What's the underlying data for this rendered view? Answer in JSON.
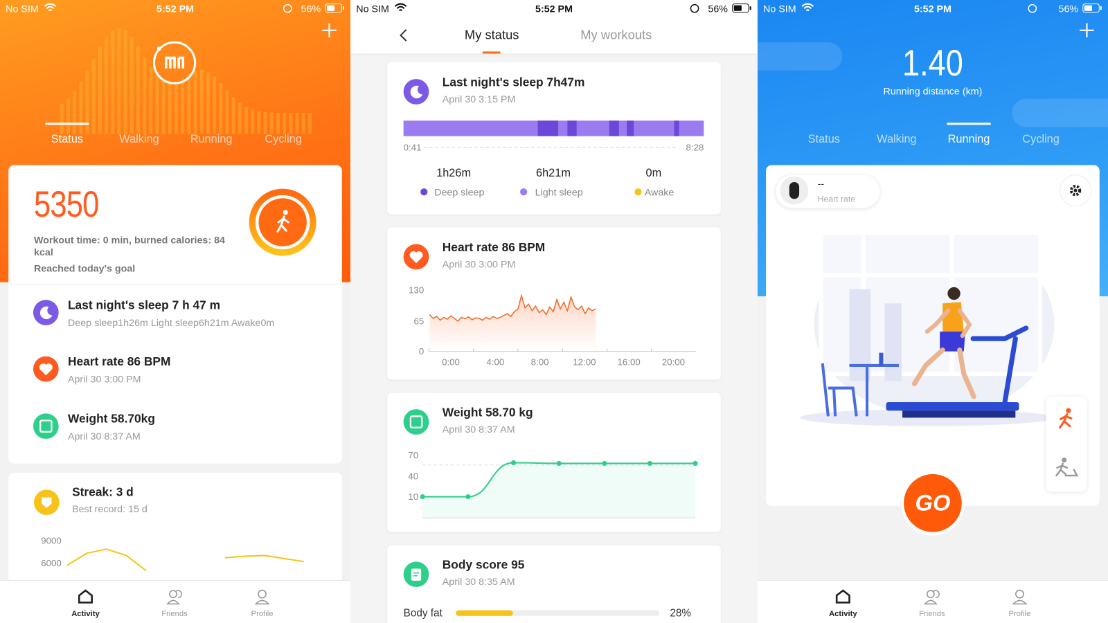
{
  "left": {
    "status_bar": {
      "carrier": "No SIM",
      "time": "5:52 PM",
      "battery": "56%"
    },
    "tabs": [
      "Status",
      "Walking",
      "Running",
      "Cycling"
    ],
    "steps": 5350,
    "workout": "Workout time: 0 min, burned calories: 84 kcal",
    "goal": "Reached today's goal",
    "items": [
      {
        "title": "Last night's sleep 7 h 47 m",
        "subtitle": "Deep sleep1h26m Light sleep6h21m Awake0m"
      },
      {
        "title": "Heart rate 86 BPM",
        "subtitle": "April 30 3:00 PM"
      },
      {
        "title": "Weight 58.70kg",
        "subtitle": "April 30 8:37 AM"
      }
    ],
    "streak": {
      "title": "Streak: 3 d",
      "subtitle": "Best record: 15 d",
      "yticks": [
        9000,
        6000
      ],
      "values": [
        5700,
        7300,
        7850,
        7000,
        5000,
        null,
        null,
        null,
        6700,
        6900,
        7000,
        6600,
        6200
      ]
    },
    "nav": [
      "Activity",
      "Friends",
      "Profile"
    ]
  },
  "middle": {
    "status_bar": {
      "carrier": "No SIM",
      "time": "5:52 PM",
      "battery": "56%"
    },
    "tabs": [
      "My status",
      "My workouts"
    ],
    "sleep": {
      "title": "Last night's sleep 7h47m",
      "date": "April 30 3:15 PM",
      "start": "0:41",
      "end": "8:28",
      "stats": [
        {
          "value": "1h26m",
          "label": "Deep sleep"
        },
        {
          "value": "6h21m",
          "label": "Light sleep"
        },
        {
          "value": "0m",
          "label": "Awake"
        }
      ]
    },
    "heart": {
      "title": "Heart rate 86  BPM",
      "date": "April 30 3:00 PM",
      "yticks": [
        130,
        65,
        0
      ],
      "xticks": [
        "0:00",
        "4:00",
        "8:00",
        "12:00",
        "16:00",
        "20:00"
      ],
      "values": [
        78,
        70,
        74,
        66,
        72,
        68,
        75,
        70,
        64,
        72,
        69,
        73,
        67,
        71,
        70,
        66,
        72,
        68,
        74,
        70,
        72,
        76,
        80,
        74,
        84,
        90,
        118,
        92,
        100,
        86,
        96,
        82,
        88,
        78,
        94,
        84,
        110,
        90,
        104,
        86,
        115,
        95,
        88,
        96,
        80,
        92,
        86,
        90
      ]
    },
    "weight": {
      "title": "Weight 58.70 kg",
      "date": "April 30 8:37 AM",
      "yticks": [
        70,
        40,
        10
      ],
      "values": [
        10,
        10,
        59,
        58,
        58,
        58,
        58
      ]
    },
    "body": {
      "title": "Body score 95",
      "date": "April 30 8:35 AM",
      "label": "Body fat",
      "value": 28,
      "value_label": "28%"
    }
  },
  "right": {
    "status_bar": {
      "carrier": "No SIM",
      "time": "5:52 PM",
      "battery": "56%"
    },
    "distance": "1.40",
    "distance_label": "Running distance (km)",
    "tabs": [
      "Status",
      "Walking",
      "Running",
      "Cycling"
    ],
    "heart_chip": {
      "value": "--",
      "label": "Heart rate"
    },
    "go": "GO",
    "nav": [
      "Activity",
      "Friends",
      "Profile"
    ]
  }
}
